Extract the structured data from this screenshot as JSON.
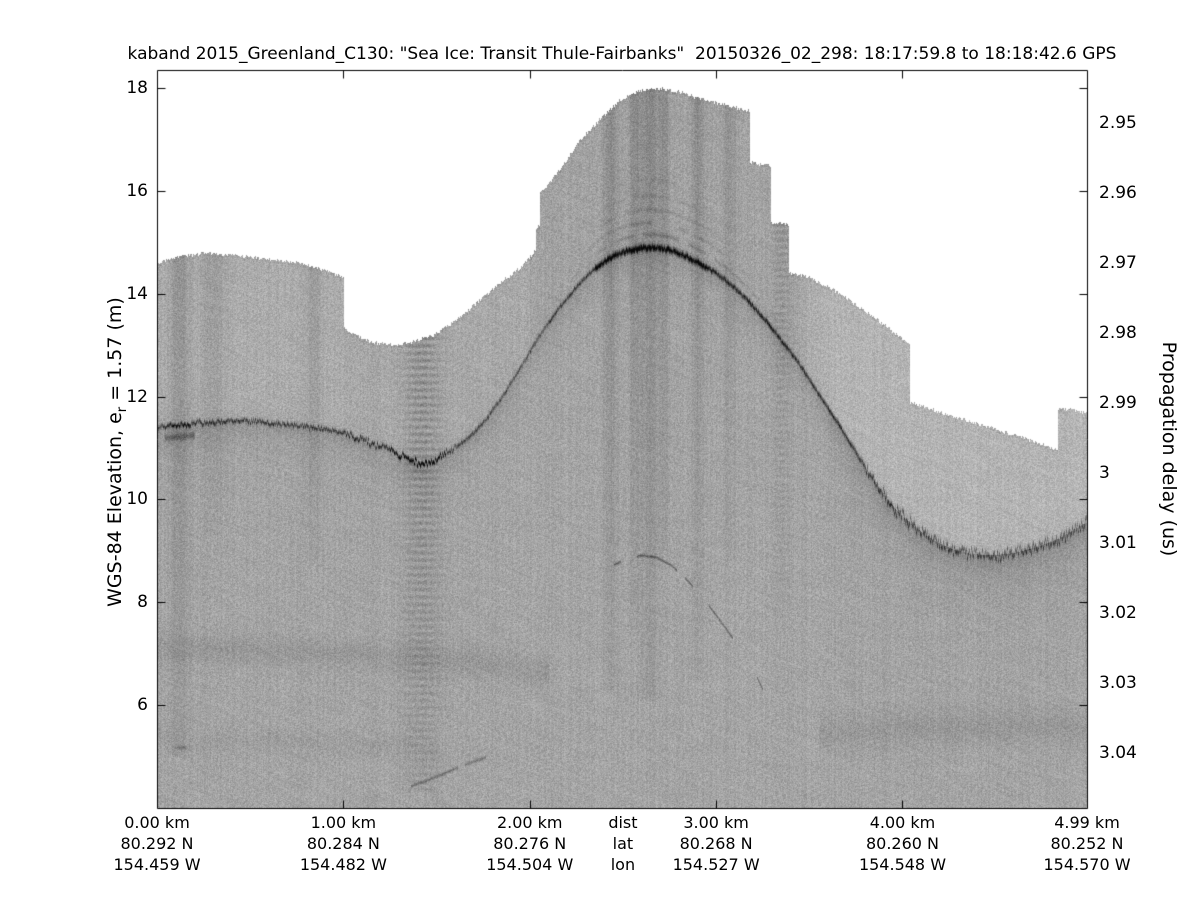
{
  "chart_data": {
    "type": "heatmap",
    "description": "Ka-band radar echogram (grayscale) of sea ice surface elevation along a flight transect",
    "title": "kaband 2015_Greenland_C130: \"Sea Ice: Transit Thule-Fairbanks\"  20150326_02_298: 18:17:59.8 to 18:18:42.6 GPS",
    "y_axis_left": {
      "full_label": "WGS-84 Elevation, e_r = 1.57 (m)",
      "label_pre": "WGS-84 Elevation, e",
      "label_sub": "r",
      "label_post": " = 1.57 (m)",
      "ticks": [
        18,
        16,
        14,
        12,
        10,
        8,
        6
      ],
      "lim": [
        4.0,
        18.35
      ]
    },
    "y_axis_right": {
      "label": "Propagation delay (us)",
      "ticks": [
        "2.95",
        "2.96",
        "2.97",
        "2.98",
        "2.99",
        "3",
        "3.01",
        "3.02",
        "3.03",
        "3.04"
      ],
      "tick_values": [
        2.95,
        2.96,
        2.97,
        2.98,
        2.99,
        3.0,
        3.01,
        3.02,
        3.03,
        3.04
      ],
      "lim": [
        2.9424,
        3.0479
      ]
    },
    "x_axis": {
      "lim_km": [
        0,
        4.99
      ],
      "tick_marks_km": [
        1,
        2,
        3,
        4
      ],
      "header": {
        "km": "dist",
        "lat": "lat",
        "lon": "lon",
        "pos_km": 2.5
      },
      "columns": [
        {
          "km": "0.00 km",
          "lat": "80.292 N",
          "lon": "154.459 W",
          "pos_km": 0.0
        },
        {
          "km": "1.00 km",
          "lat": "80.284 N",
          "lon": "154.482 W",
          "pos_km": 1.0
        },
        {
          "km": "2.00 km",
          "lat": "80.276 N",
          "lon": "154.504 W",
          "pos_km": 2.0
        },
        {
          "km": "3.00 km",
          "lat": "80.268 N",
          "lon": "154.527 W",
          "pos_km": 3.0
        },
        {
          "km": "4.00 km",
          "lat": "80.260 N",
          "lon": "154.548 W",
          "pos_km": 4.0
        },
        {
          "km": "4.99 km",
          "lat": "80.252 N",
          "lon": "154.570 W",
          "pos_km": 4.99
        }
      ]
    },
    "colors": {
      "background": "#ffffff",
      "fill_gray": "#a8a8a8",
      "reflector_dark": "#141414",
      "frame": "#000000"
    },
    "series": {
      "data_top_envelope_km_elev": [
        [
          0,
          14.62
        ],
        [
          0.12,
          14.72
        ],
        [
          0.25,
          14.8
        ],
        [
          0.4,
          14.76
        ],
        [
          0.6,
          14.68
        ],
        [
          0.77,
          14.6
        ],
        [
          0.9,
          14.47
        ],
        [
          1.0,
          14.31
        ],
        [
          1.0,
          13.35
        ],
        [
          1.05,
          13.22
        ],
        [
          1.15,
          13.06
        ],
        [
          1.25,
          13.02
        ],
        [
          1.36,
          13.06
        ],
        [
          1.48,
          13.2
        ],
        [
          1.6,
          13.48
        ],
        [
          1.72,
          13.85
        ],
        [
          1.84,
          14.22
        ],
        [
          1.95,
          14.52
        ],
        [
          2.03,
          14.86
        ],
        [
          2.03,
          15.28
        ],
        [
          2.05,
          15.32
        ],
        [
          2.05,
          15.98
        ],
        [
          2.08,
          16.06
        ],
        [
          2.16,
          16.42
        ],
        [
          2.27,
          17.0
        ],
        [
          2.38,
          17.42
        ],
        [
          2.48,
          17.77
        ],
        [
          2.59,
          17.96
        ],
        [
          2.7,
          18.0
        ],
        [
          2.81,
          17.92
        ],
        [
          2.91,
          17.8
        ],
        [
          3.02,
          17.7
        ],
        [
          3.18,
          17.56
        ],
        [
          3.18,
          16.56
        ],
        [
          3.29,
          16.5
        ],
        [
          3.29,
          15.4
        ],
        [
          3.39,
          15.36
        ],
        [
          3.39,
          14.42
        ],
        [
          3.5,
          14.32
        ],
        [
          3.62,
          14.1
        ],
        [
          3.76,
          13.77
        ],
        [
          3.9,
          13.4
        ],
        [
          4.04,
          13.01
        ],
        [
          4.04,
          11.9
        ],
        [
          4.12,
          11.8
        ],
        [
          4.25,
          11.64
        ],
        [
          4.4,
          11.49
        ],
        [
          4.55,
          11.31
        ],
        [
          4.7,
          11.14
        ],
        [
          4.83,
          10.97
        ],
        [
          4.83,
          11.78
        ],
        [
          4.92,
          11.75
        ],
        [
          4.99,
          11.69
        ]
      ],
      "surface_reflector_km_elev": [
        [
          0,
          11.42
        ],
        [
          0.15,
          11.47
        ],
        [
          0.3,
          11.52
        ],
        [
          0.45,
          11.55
        ],
        [
          0.6,
          11.5
        ],
        [
          0.72,
          11.46
        ],
        [
          0.85,
          11.4
        ],
        [
          1.0,
          11.3
        ],
        [
          1.1,
          11.16
        ],
        [
          1.2,
          11.05
        ],
        [
          1.3,
          10.88
        ],
        [
          1.38,
          10.72
        ],
        [
          1.45,
          10.73
        ],
        [
          1.52,
          10.85
        ],
        [
          1.6,
          11.02
        ],
        [
          1.68,
          11.25
        ],
        [
          1.76,
          11.55
        ],
        [
          1.84,
          11.95
        ],
        [
          1.92,
          12.4
        ],
        [
          2.0,
          12.9
        ],
        [
          2.08,
          13.35
        ],
        [
          2.16,
          13.75
        ],
        [
          2.24,
          14.1
        ],
        [
          2.32,
          14.42
        ],
        [
          2.4,
          14.65
        ],
        [
          2.48,
          14.8
        ],
        [
          2.56,
          14.88
        ],
        [
          2.66,
          14.91
        ],
        [
          2.76,
          14.85
        ],
        [
          2.86,
          14.7
        ],
        [
          2.96,
          14.5
        ],
        [
          3.06,
          14.24
        ],
        [
          3.16,
          13.9
        ],
        [
          3.26,
          13.5
        ],
        [
          3.36,
          13.05
        ],
        [
          3.46,
          12.55
        ],
        [
          3.56,
          12.0
        ],
        [
          3.66,
          11.45
        ],
        [
          3.76,
          10.85
        ],
        [
          3.86,
          10.3
        ],
        [
          3.96,
          9.82
        ],
        [
          4.06,
          9.48
        ],
        [
          4.16,
          9.22
        ],
        [
          4.26,
          9.05
        ],
        [
          4.36,
          8.95
        ],
        [
          4.48,
          8.92
        ],
        [
          4.6,
          8.97
        ],
        [
          4.72,
          9.08
        ],
        [
          4.84,
          9.25
        ],
        [
          4.93,
          9.45
        ],
        [
          4.99,
          9.57
        ]
      ],
      "secondary_arc_km_elev": [
        [
          2.45,
          8.74
        ],
        [
          2.52,
          8.85
        ],
        [
          2.6,
          8.92
        ],
        [
          2.68,
          8.88
        ],
        [
          2.76,
          8.72
        ],
        [
          2.84,
          8.45
        ],
        [
          2.92,
          8.12
        ],
        [
          3.0,
          7.75
        ],
        [
          3.08,
          7.35
        ],
        [
          3.15,
          6.95
        ],
        [
          3.21,
          6.6
        ],
        [
          3.25,
          6.3
        ]
      ],
      "bottom_arc_km_elev": [
        [
          1.36,
          4.43
        ],
        [
          1.5,
          4.62
        ],
        [
          1.64,
          4.84
        ],
        [
          1.81,
          5.05
        ]
      ],
      "speck_km_elev": [
        0.125,
        5.18
      ],
      "vertical_streaks": [
        {
          "km": 0.12,
          "w": 7,
          "s": 24,
          "bottom_elev": 5.0,
          "ribbed": false
        },
        {
          "km": 0.3,
          "w": 8,
          "s": 16,
          "bottom_elev": 9.3,
          "ribbed": false
        },
        {
          "km": 0.84,
          "w": 5,
          "s": 18,
          "bottom_elev": 8.8,
          "ribbed": false
        },
        {
          "km": 1.42,
          "w": 12,
          "s": 32,
          "bottom_elev": 4.3,
          "ribbed": true
        },
        {
          "km": 2.43,
          "w": 5,
          "s": 26,
          "bottom_elev": 6.3,
          "ribbed": false
        },
        {
          "km": 2.56,
          "w": 4,
          "s": 24,
          "bottom_elev": 7.5,
          "ribbed": false
        },
        {
          "km": 2.64,
          "w": 7,
          "s": 28,
          "bottom_elev": 6.1,
          "ribbed": false
        },
        {
          "km": 2.72,
          "w": 4,
          "s": 20,
          "bottom_elev": 9.0,
          "ribbed": false
        },
        {
          "km": 2.9,
          "w": 4,
          "s": 24,
          "bottom_elev": 6.5,
          "ribbed": false
        },
        {
          "km": 3.07,
          "w": 5,
          "s": 14,
          "bottom_elev": 8.8,
          "ribbed": false
        },
        {
          "km": 3.35,
          "w": 6,
          "s": 18,
          "bottom_elev": 7.7,
          "ribbed": true
        }
      ],
      "faint_bands": [
        {
          "path": [
            [
              0,
              7.15
            ],
            [
              0.6,
              7.05
            ],
            [
              1.2,
              6.98
            ],
            [
              1.7,
              6.85
            ],
            [
              2.1,
              6.65
            ]
          ],
          "halfw": 14,
          "s": 12
        },
        {
          "path": [
            [
              0,
              5.35
            ],
            [
              0.8,
              5.28
            ],
            [
              1.5,
              5.18
            ]
          ],
          "halfw": 12,
          "s": 6
        },
        {
          "path": [
            [
              3.55,
              5.45
            ],
            [
              4.0,
              5.55
            ],
            [
              4.5,
              5.62
            ],
            [
              4.99,
              5.55
            ]
          ],
          "halfw": 18,
          "s": 11
        }
      ],
      "layer_arcs_above_crest": [
        {
          "off": 13,
          "s": 26,
          "range": [
            2.08,
            3.4
          ]
        },
        {
          "off": 25,
          "s": 20,
          "range": [
            2.15,
            3.3
          ]
        },
        {
          "off": 38,
          "s": 16,
          "range": [
            2.2,
            3.18
          ]
        },
        {
          "off": 52,
          "s": 13,
          "range": [
            2.28,
            3.05
          ]
        },
        {
          "off": 68,
          "s": 10,
          "range": [
            2.33,
            2.98
          ]
        }
      ]
    }
  }
}
